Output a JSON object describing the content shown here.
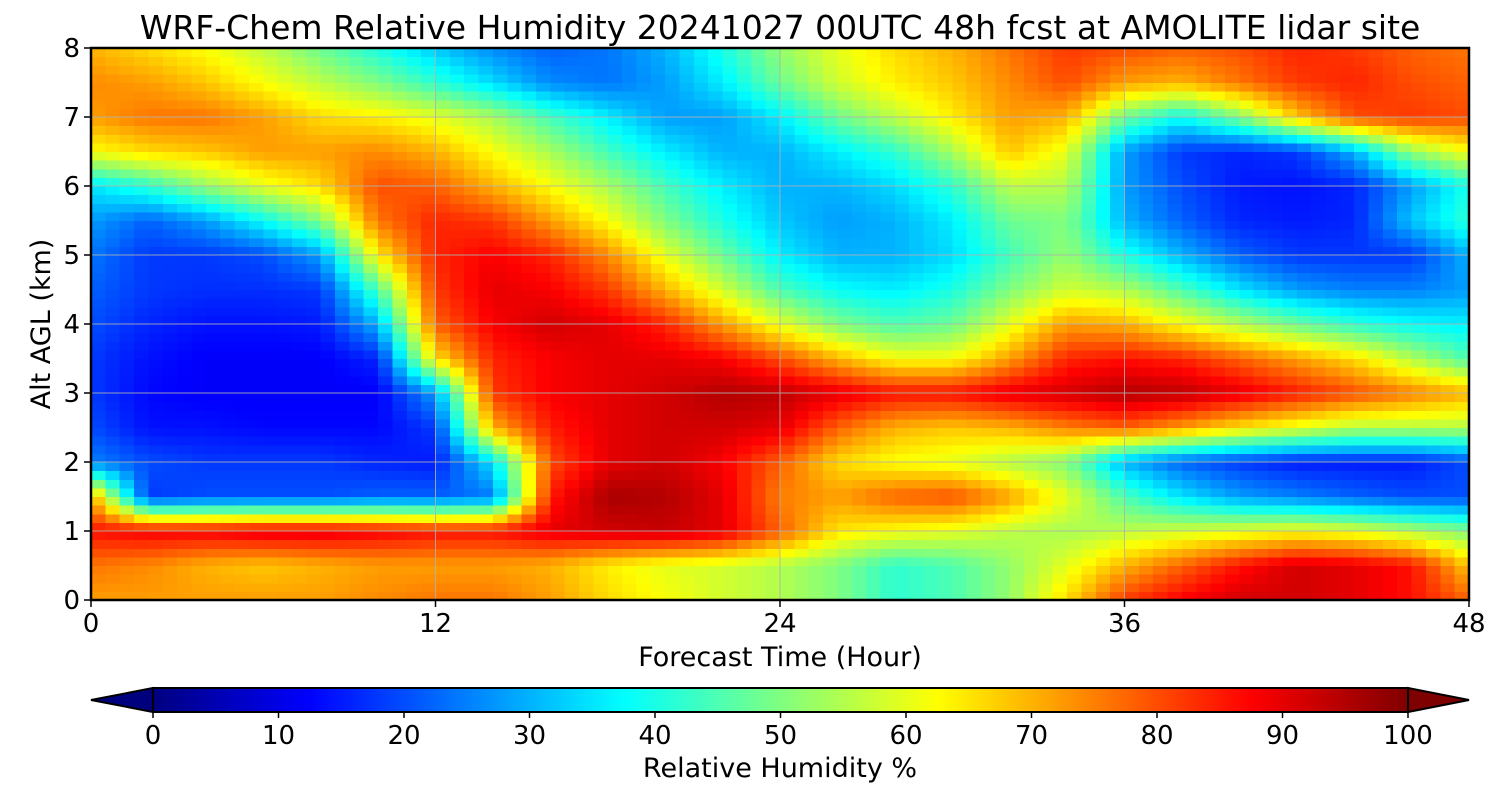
{
  "chart_data": {
    "type": "heatmap",
    "title": "WRF-Chem Relative Humidity 20241027 00UTC 48h fcst at AMOLITE lidar site",
    "xlabel": "Forecast Time (Hour)",
    "ylabel": "Alt AGL (km)",
    "xlim": [
      0,
      48
    ],
    "ylim": [
      0,
      8
    ],
    "x_ticks": [
      "0",
      "12",
      "24",
      "36",
      "48"
    ],
    "y_ticks": [
      "0",
      "1",
      "2",
      "3",
      "4",
      "5",
      "6",
      "7",
      "8"
    ],
    "grid": true,
    "colormap": "jet",
    "colorbar": {
      "label": "Relative Humidity %",
      "range": [
        0,
        100
      ],
      "ticks": [
        "0",
        "10",
        "20",
        "30",
        "40",
        "50",
        "60",
        "70",
        "80",
        "90",
        "100"
      ],
      "extend": "both",
      "orientation": "horizontal",
      "placement": "bottom"
    },
    "x": [
      0,
      2,
      4,
      6,
      8,
      10,
      12,
      14,
      16,
      18,
      20,
      22,
      24,
      26,
      28,
      30,
      32,
      34,
      36,
      38,
      40,
      42,
      44,
      46,
      48
    ],
    "y": [
      0,
      0.5,
      1,
      1.5,
      2,
      2.5,
      3,
      3.5,
      4,
      4.5,
      5,
      5.5,
      6,
      6.5,
      7,
      7.5,
      8
    ],
    "z": [
      [
        72,
        72,
        72,
        72,
        72,
        74,
        76,
        76,
        72,
        66,
        62,
        58,
        55,
        50,
        42,
        45,
        52,
        66,
        82,
        88,
        92,
        92,
        90,
        86,
        78
      ],
      [
        76,
        74,
        70,
        68,
        70,
        72,
        72,
        72,
        70,
        64,
        60,
        58,
        55,
        50,
        42,
        45,
        52,
        60,
        70,
        78,
        86,
        92,
        90,
        86,
        68
      ],
      [
        86,
        88,
        88,
        90,
        90,
        88,
        86,
        86,
        90,
        92,
        93,
        90,
        78,
        65,
        62,
        60,
        56,
        54,
        56,
        58,
        60,
        62,
        60,
        55,
        50
      ],
      [
        72,
        18,
        20,
        20,
        20,
        22,
        22,
        24,
        85,
        96,
        95,
        90,
        75,
        72,
        78,
        80,
        72,
        60,
        45,
        35,
        28,
        25,
        22,
        20,
        20
      ],
      [
        25,
        20,
        18,
        18,
        18,
        16,
        15,
        35,
        80,
        90,
        92,
        88,
        78,
        66,
        62,
        60,
        55,
        50,
        30,
        22,
        18,
        15,
        15,
        15,
        20
      ],
      [
        20,
        14,
        14,
        13,
        13,
        13,
        18,
        70,
        85,
        90,
        92,
        92,
        90,
        78,
        70,
        68,
        70,
        75,
        78,
        72,
        65,
        60,
        55,
        55,
        55
      ],
      [
        18,
        13,
        12,
        12,
        12,
        12,
        28,
        82,
        88,
        90,
        92,
        95,
        94,
        90,
        86,
        86,
        90,
        92,
        95,
        94,
        90,
        85,
        80,
        75,
        70
      ],
      [
        18,
        14,
        12,
        12,
        12,
        16,
        65,
        84,
        88,
        90,
        90,
        88,
        80,
        70,
        62,
        62,
        72,
        84,
        86,
        84,
        78,
        72,
        66,
        55,
        45
      ],
      [
        20,
        16,
        14,
        14,
        15,
        30,
        78,
        88,
        92,
        90,
        84,
        72,
        60,
        50,
        45,
        48,
        60,
        72,
        70,
        62,
        55,
        48,
        42,
        38,
        36
      ],
      [
        22,
        18,
        17,
        17,
        18,
        45,
        82,
        90,
        88,
        82,
        70,
        58,
        45,
        38,
        36,
        40,
        50,
        58,
        55,
        45,
        35,
        28,
        25,
        25,
        28
      ],
      [
        24,
        18,
        18,
        20,
        28,
        64,
        84,
        88,
        84,
        74,
        60,
        48,
        36,
        30,
        30,
        34,
        44,
        52,
        40,
        30,
        22,
        18,
        18,
        18,
        30
      ],
      [
        28,
        22,
        28,
        38,
        50,
        76,
        84,
        82,
        72,
        62,
        50,
        40,
        32,
        28,
        30,
        36,
        48,
        50,
        30,
        22,
        16,
        15,
        16,
        32,
        42
      ],
      [
        35,
        42,
        52,
        60,
        66,
        80,
        78,
        70,
        62,
        54,
        44,
        36,
        30,
        30,
        34,
        42,
        56,
        55,
        28,
        20,
        15,
        14,
        16,
        28,
        40
      ],
      [
        62,
        66,
        68,
        72,
        72,
        74,
        70,
        62,
        54,
        44,
        36,
        30,
        30,
        36,
        42,
        54,
        68,
        60,
        28,
        18,
        16,
        18,
        30,
        52,
        62
      ],
      [
        72,
        76,
        76,
        72,
        66,
        64,
        60,
        54,
        44,
        36,
        28,
        28,
        36,
        48,
        56,
        64,
        72,
        70,
        48,
        38,
        50,
        68,
        80,
        82,
        80
      ],
      [
        74,
        72,
        68,
        62,
        56,
        50,
        42,
        34,
        26,
        24,
        28,
        36,
        48,
        58,
        64,
        68,
        74,
        80,
        72,
        70,
        76,
        82,
        84,
        80,
        78
      ],
      [
        70,
        66,
        62,
        56,
        48,
        40,
        32,
        26,
        22,
        24,
        30,
        40,
        52,
        60,
        66,
        70,
        76,
        82,
        80,
        78,
        80,
        84,
        82,
        78,
        76
      ]
    ]
  }
}
